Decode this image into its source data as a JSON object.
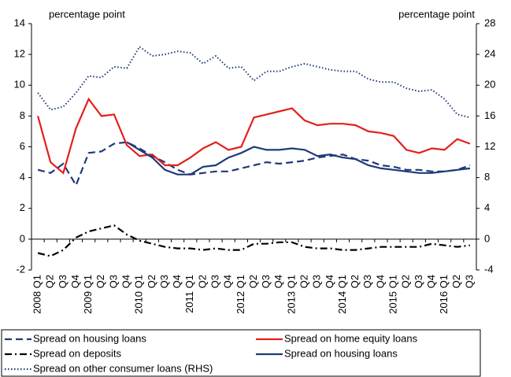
{
  "chart_data": {
    "type": "line",
    "y_unit_label": "percentage point",
    "y2_unit_label": "percentage point",
    "categories": [
      "2008 Q1",
      "Q2",
      "Q3",
      "Q4",
      "2009 Q1",
      "Q2",
      "Q3",
      "Q4",
      "2010 Q1",
      "Q2",
      "Q3",
      "Q4",
      "2011 Q1",
      "Q2",
      "Q3",
      "Q4",
      "2012 Q1",
      "Q2",
      "Q3",
      "Q4",
      "2013 Q1",
      "Q2",
      "Q3",
      "Q4",
      "2014 Q1",
      "Q2",
      "Q3",
      "Q4",
      "2015 Q1",
      "Q2",
      "Q3",
      "Q4",
      "2016 Q1",
      "Q2",
      "Q3"
    ],
    "ylim": [
      -2,
      14
    ],
    "yticks": [
      -2,
      0,
      2,
      4,
      6,
      8,
      10,
      12,
      14
    ],
    "y2lim": [
      -4,
      28
    ],
    "y2ticks": [
      -4,
      0,
      4,
      8,
      12,
      16,
      20,
      24,
      28
    ],
    "series": [
      {
        "name": "Spread on housing loans",
        "color": "#1f3a7a",
        "dash": "dashed",
        "values": [
          4.5,
          4.3,
          4.9,
          3.5,
          5.6,
          5.7,
          6.2,
          6.3,
          5.9,
          5.4,
          5.0,
          4.5,
          4.2,
          4.3,
          4.4,
          4.4,
          4.6,
          4.8,
          5.0,
          4.9,
          5.0,
          5.1,
          5.3,
          5.4,
          5.5,
          5.2,
          5.1,
          4.8,
          4.7,
          4.5,
          4.5,
          4.4,
          4.4,
          4.5,
          4.8
        ]
      },
      {
        "name": "Spread on home equity loans",
        "color": "#e3201b",
        "dash": "solid",
        "values": [
          8.0,
          5.0,
          4.3,
          7.2,
          9.1,
          8.0,
          8.1,
          6.1,
          5.4,
          5.5,
          4.8,
          4.8,
          5.3,
          5.9,
          6.3,
          5.8,
          6.0,
          7.9,
          8.1,
          8.3,
          8.5,
          7.7,
          7.4,
          7.5,
          7.5,
          7.4,
          7.0,
          6.9,
          6.7,
          5.8,
          5.6,
          5.9,
          5.8,
          6.5,
          6.2
        ]
      },
      {
        "name": "Spread on deposits",
        "color": "#000000",
        "dash": "dashdot",
        "values": [
          -0.9,
          -1.1,
          -0.7,
          0.1,
          0.5,
          0.7,
          0.9,
          0.3,
          -0.1,
          -0.3,
          -0.5,
          -0.6,
          -0.6,
          -0.7,
          -0.6,
          -0.7,
          -0.7,
          -0.3,
          -0.3,
          -0.2,
          -0.2,
          -0.5,
          -0.6,
          -0.6,
          -0.7,
          -0.7,
          -0.6,
          -0.5,
          -0.5,
          -0.5,
          -0.5,
          -0.3,
          -0.4,
          -0.5,
          -0.4
        ]
      },
      {
        "name": "Spread on housing loans",
        "color": "#1f3a7a",
        "dash": "solid",
        "values": [
          null,
          null,
          null,
          null,
          null,
          null,
          null,
          6.3,
          5.8,
          5.3,
          4.5,
          4.2,
          4.2,
          4.7,
          4.8,
          5.3,
          5.6,
          6.0,
          5.8,
          5.8,
          5.9,
          5.8,
          5.4,
          5.5,
          5.3,
          5.2,
          4.8,
          4.6,
          4.5,
          4.4,
          4.3,
          4.3,
          4.4,
          4.5,
          4.6
        ]
      },
      {
        "name": "Spread on other consumer loans (RHS)",
        "color": "#1f3a7a",
        "dash": "dotted",
        "axis": "y2",
        "values": [
          19,
          16.8,
          17.2,
          19,
          21.2,
          21,
          22.4,
          22.2,
          25,
          23.8,
          24,
          24.4,
          24.2,
          22.8,
          23.8,
          22.2,
          22.4,
          20.6,
          21.8,
          21.8,
          22.4,
          22.8,
          22.4,
          22,
          21.8,
          21.8,
          20.8,
          20.4,
          20.4,
          19.6,
          19.2,
          19.4,
          18.2,
          16.2,
          15.8
        ]
      }
    ]
  }
}
